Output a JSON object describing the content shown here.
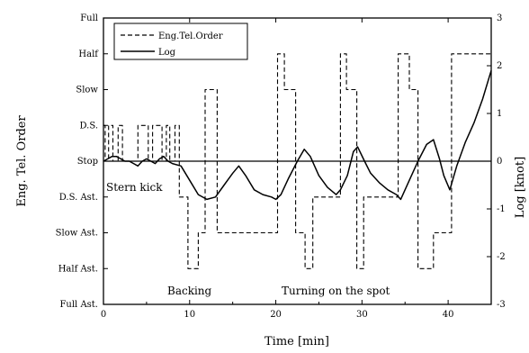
{
  "chart_data": {
    "type": "line",
    "xlabel": "Time [min]",
    "ylabel_left": "Eng. Tel. Order",
    "ylabel_right": "Log [knot]",
    "xlim": [
      0,
      45
    ],
    "x_ticks": [
      "0",
      "10",
      "20",
      "30",
      "40"
    ],
    "x_tick_values": [
      0,
      10,
      20,
      30,
      40
    ],
    "left_categories": [
      "Full Ast.",
      "Half Ast.",
      "Slow Ast.",
      "D.S. Ast.",
      "Stop",
      "D.S.",
      "Slow",
      "Half",
      "Full"
    ],
    "left_levels": [
      -4,
      -3,
      -2,
      -1,
      0,
      1,
      2,
      3,
      4
    ],
    "right_ylim": [
      -3,
      3
    ],
    "right_ticks": [
      "-3",
      "-2",
      "-1",
      "0",
      "1",
      "2",
      "3"
    ],
    "right_tick_values": [
      -3,
      -2,
      -1,
      0,
      1,
      2,
      3
    ],
    "legend": {
      "placement": "top-left",
      "entries": [
        "Eng.Tel.Order",
        "Log"
      ]
    },
    "annotations": [
      {
        "text": "Stern kick"
      },
      {
        "text": "Backing"
      },
      {
        "text": "Turning on the spot"
      }
    ],
    "series": [
      {
        "name": "Eng.Tel.Order",
        "style": "dashed",
        "axis": "left",
        "x": [
          0,
          0.2,
          0.2,
          0.6,
          0.6,
          1.1,
          1.1,
          1.7,
          1.7,
          2.2,
          2.2,
          2.5,
          2.5,
          4.0,
          4.0,
          5.2,
          5.2,
          5.7,
          5.7,
          6.8,
          6.8,
          7.3,
          7.3,
          7.7,
          7.7,
          8.3,
          8.3,
          8.8,
          8.8,
          9.8,
          9.8,
          10.2,
          10.2,
          11.0,
          11.0,
          11.8,
          11.8,
          13.2,
          13.2,
          15.6,
          15.6,
          16.5,
          16.5,
          20.2,
          20.2,
          21.0,
          21.0,
          22.3,
          22.3,
          23.4,
          23.4,
          24.3,
          24.3,
          27.5,
          27.5,
          28.2,
          28.2,
          29.4,
          29.4,
          30.2,
          30.2,
          31.5,
          31.5,
          34.2,
          34.2,
          35.5,
          35.5,
          36.5,
          36.5,
          38.3,
          38.3,
          40.4,
          40.4,
          45
        ],
        "y": [
          1,
          1,
          0,
          0,
          1,
          1,
          0,
          0,
          1,
          1,
          0,
          0,
          0,
          0,
          1,
          1,
          0,
          0,
          1,
          1,
          0,
          0,
          1,
          1,
          0,
          0,
          1,
          1,
          -1,
          -1,
          -3,
          -3,
          -3,
          -3,
          -2,
          -2,
          2,
          2,
          -2,
          -2,
          -2,
          -2,
          -2,
          -2,
          3,
          3,
          2,
          2,
          -2,
          -2,
          -3,
          -3,
          -1,
          -1,
          3,
          3,
          2,
          2,
          -3,
          -3,
          -1,
          -1,
          -1,
          -1,
          3,
          3,
          2,
          2,
          -3,
          -3,
          -2,
          -2,
          3,
          3
        ]
      },
      {
        "name": "Log",
        "style": "solid",
        "axis": "right",
        "x": [
          0,
          0.5,
          1.0,
          1.5,
          2.0,
          2.5,
          3.0,
          3.5,
          4.0,
          4.5,
          5.0,
          5.5,
          6.0,
          6.5,
          7.0,
          7.5,
          8.0,
          9.0,
          10.0,
          11.0,
          12.0,
          13.0,
          14.0,
          15.0,
          15.7,
          16.5,
          17.5,
          18.5,
          19.5,
          20.0,
          20.6,
          21.5,
          22.5,
          23.3,
          24.0,
          25.0,
          26.0,
          27.0,
          27.5,
          28.3,
          29.0,
          29.5,
          30.3,
          31.0,
          32.0,
          33.0,
          34.0,
          34.5,
          35.5,
          36.5,
          37.5,
          38.3,
          39.0,
          39.5,
          40.2,
          41.0,
          42.0,
          43.0,
          44.0,
          45.0
        ],
        "y": [
          0.0,
          0.05,
          0.1,
          0.1,
          0.05,
          0.0,
          0.0,
          -0.05,
          -0.1,
          0.0,
          0.05,
          0.0,
          -0.05,
          0.05,
          0.1,
          0.0,
          -0.05,
          -0.1,
          -0.4,
          -0.7,
          -0.8,
          -0.75,
          -0.5,
          -0.25,
          -0.1,
          -0.3,
          -0.6,
          -0.7,
          -0.75,
          -0.8,
          -0.7,
          -0.35,
          0.0,
          0.25,
          0.1,
          -0.3,
          -0.55,
          -0.7,
          -0.6,
          -0.3,
          0.2,
          0.3,
          0.0,
          -0.25,
          -0.45,
          -0.6,
          -0.7,
          -0.8,
          -0.4,
          0.0,
          0.35,
          0.45,
          0.05,
          -0.3,
          -0.6,
          -0.1,
          0.4,
          0.8,
          1.3,
          1.9
        ]
      }
    ]
  }
}
